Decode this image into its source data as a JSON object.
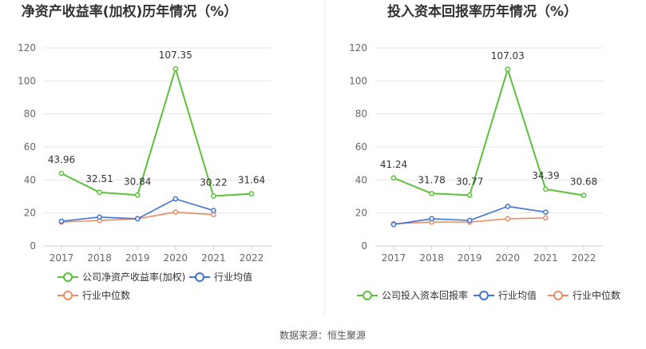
{
  "colors": {
    "company": "#5cc13a",
    "industry_avg": "#3f73d8",
    "industry_median": "#f08a64",
    "grid": "#e6e6e6",
    "axis": "#cccccc",
    "divider": "#eeeeee"
  },
  "source_text": "数据来源：恒生聚源",
  "chart_data": [
    {
      "type": "line",
      "title": "净资产收益率(加权)历年情况（%）",
      "xlabel": "",
      "ylabel": "",
      "x": [
        "2017",
        "2018",
        "2019",
        "2020",
        "2021",
        "2022"
      ],
      "ylim": [
        0,
        120
      ],
      "yticks": [
        "0",
        "20",
        "40",
        "60",
        "80",
        "100",
        "120"
      ],
      "grid": true,
      "legend_position": "bottom-left",
      "series": [
        {
          "name": "公司净资产收益率(加权)",
          "key": "company",
          "values": [
            43.96,
            32.51,
            30.84,
            107.35,
            30.22,
            31.64
          ],
          "labels": [
            "43.96",
            "32.51",
            "30.84",
            "107.35",
            "30.22",
            "31.64"
          ]
        },
        {
          "name": "行业均值",
          "key": "industry_avg",
          "values": [
            15.0,
            17.5,
            16.5,
            28.5,
            21.5,
            null
          ],
          "labels": []
        },
        {
          "name": "行业中位数",
          "key": "industry_median",
          "values": [
            14.5,
            15.5,
            16.5,
            20.5,
            19.0,
            null
          ],
          "labels": []
        }
      ]
    },
    {
      "type": "line",
      "title": "投入资本回报率历年情况（%）",
      "xlabel": "",
      "ylabel": "",
      "x": [
        "2017",
        "2018",
        "2019",
        "2020",
        "2021",
        "2022"
      ],
      "ylim": [
        0,
        120
      ],
      "yticks": [
        "0",
        "20",
        "40",
        "60",
        "80",
        "100",
        "120"
      ],
      "grid": true,
      "legend_position": "bottom",
      "series": [
        {
          "name": "公司投入资本回报率",
          "key": "company",
          "values": [
            41.24,
            31.78,
            30.77,
            107.03,
            34.39,
            30.68
          ],
          "labels": [
            "41.24",
            "31.78",
            "30.77",
            "107.03",
            "34.39",
            "30.68"
          ]
        },
        {
          "name": "行业均值",
          "key": "industry_avg",
          "values": [
            13.0,
            16.5,
            15.5,
            24.0,
            20.5,
            null
          ],
          "labels": []
        },
        {
          "name": "行业中位数",
          "key": "industry_median",
          "values": [
            13.5,
            14.5,
            14.5,
            16.5,
            17.0,
            null
          ],
          "labels": []
        }
      ]
    }
  ]
}
